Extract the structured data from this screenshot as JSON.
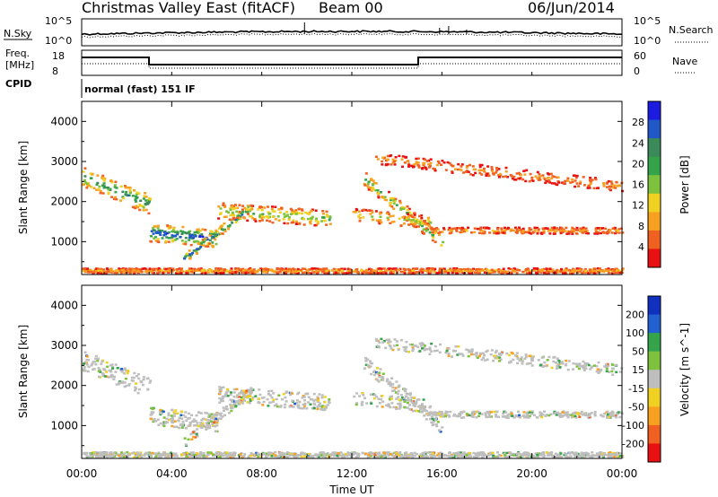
{
  "header": {
    "station": "Christmas Valley East (fitACF)",
    "beam": "Beam 00",
    "date": "06/Jun/2014"
  },
  "noise_panel": {
    "left_label": "N.Sky",
    "right_label": "N.Search",
    "tick_top": "10^5",
    "tick_bottom": "10^0"
  },
  "freq_panel": {
    "left_label_1": "Freq.",
    "left_label_2": "[MHz]",
    "right_label": "Nave",
    "left_ticks": [
      "18",
      "8"
    ],
    "right_ticks": [
      "60",
      "0"
    ]
  },
  "cpid": {
    "label": "CPID",
    "mode": "normal (fast) 151 IF"
  },
  "chart_data": [
    {
      "type": "heatmap",
      "name": "power",
      "ylabel": "Slant Range [km]",
      "y_ticks": [
        "1000",
        "2000",
        "3000",
        "4000"
      ],
      "ylim": [
        180,
        4500
      ],
      "xlim": [
        0,
        24
      ],
      "colorbar": {
        "label": "Power [dB]",
        "ticks": [
          "28",
          "24",
          "20",
          "16",
          "12",
          "8",
          "4"
        ],
        "range": [
          0,
          30
        ],
        "colors": [
          "#1c1ce0",
          "#2058c8",
          "#3a8a5a",
          "#34a34a",
          "#7cc23c",
          "#f0d020",
          "#f8a020",
          "#f06020",
          "#e81010"
        ]
      }
    },
    {
      "type": "heatmap",
      "name": "velocity",
      "ylabel": "Slant Range [km]",
      "y_ticks": [
        "1000",
        "2000",
        "3000",
        "4000"
      ],
      "ylim": [
        180,
        4500
      ],
      "xlim": [
        0,
        24
      ],
      "colorbar": {
        "label": "Velocity [m s^-1]",
        "ticks": [
          "200",
          "100",
          "50",
          "15",
          "-15",
          "-50",
          "-100",
          "-200"
        ],
        "range": [
          -250,
          250
        ],
        "colors": [
          "#1030c0",
          "#2060d0",
          "#34a34a",
          "#7cc23c",
          "#bebebe",
          "#f0d020",
          "#f8a020",
          "#f06020",
          "#e81010"
        ]
      }
    }
  ],
  "x_axis": {
    "label": "Time UT",
    "ticks": [
      "00:00",
      "04:00",
      "08:00",
      "12:00",
      "16:00",
      "20:00",
      "00:00"
    ]
  }
}
